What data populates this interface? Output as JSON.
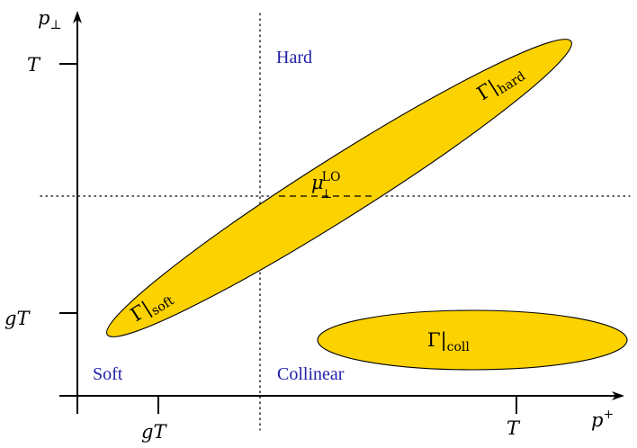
{
  "axes": {
    "x_label": "p",
    "x_label_sup": "+",
    "y_label": "p",
    "y_label_sub": "⊥",
    "x_ticks": [
      "gT",
      "T"
    ],
    "y_ticks": [
      "T",
      "gT"
    ]
  },
  "regions": {
    "hard": "Hard",
    "soft": "Soft",
    "collinear": "Collinear"
  },
  "blobs": {
    "hard": {
      "symbol": "Γ|",
      "sub": "hard"
    },
    "soft": {
      "symbol": "Γ|",
      "sub": "soft"
    },
    "coll": {
      "symbol": "Γ|",
      "sub": "coll"
    }
  },
  "crossing_label": {
    "symbol": "μ",
    "sub": "⊥",
    "sup": "LO"
  },
  "colors": {
    "blob_fill": "#fcd200",
    "region_text": "#1f1fa8"
  }
}
